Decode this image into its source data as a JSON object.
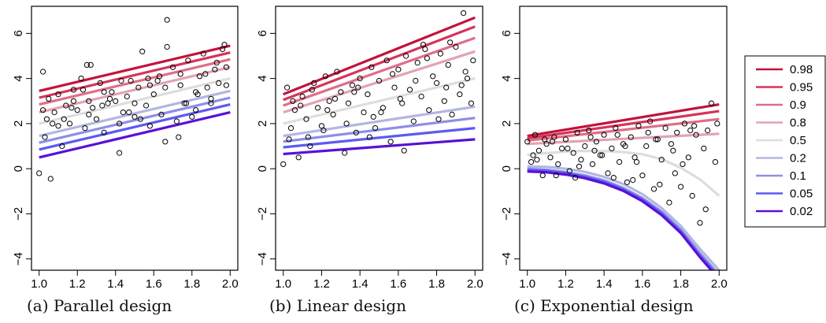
{
  "captions": [
    "(a)  Parallel design",
    "(b)  Linear design",
    "(c)  Exponential design"
  ],
  "colors": {
    "0.98": "#c4123a",
    "0.95": "#d6335a",
    "0.9": "#e06d87",
    "0.8": "#e3a3b1",
    "0.5": "#dddddd",
    "0.2": "#b3b6e1",
    "0.1": "#8c8fe6",
    "0.05": "#5d5af0",
    "0.02": "#5a10d8"
  },
  "legend": {
    "entries": [
      "0.98",
      "0.95",
      "0.9",
      "0.8",
      "0.5",
      "0.2",
      "0.1",
      "0.05",
      "0.02"
    ],
    "placement": "right"
  },
  "chart_data": [
    {
      "type": "scatter",
      "title": "",
      "xlabel": "",
      "ylabel": "",
      "xlim": [
        0.96,
        2.04
      ],
      "ylim": [
        -4.5,
        7.2
      ],
      "xticks": [
        "1.0",
        "1.2",
        "1.4",
        "1.6",
        "1.8",
        "2.0"
      ],
      "yticks": [
        "−4",
        "−2",
        "0",
        "2",
        "4",
        "6"
      ],
      "quantile_lines": [
        {
          "level": "0.98",
          "x": [
            1.0,
            2.0
          ],
          "y": [
            3.45,
            5.45
          ]
        },
        {
          "level": "0.95",
          "x": [
            1.0,
            2.0
          ],
          "y": [
            3.15,
            5.15
          ]
        },
        {
          "level": "0.9",
          "x": [
            1.0,
            2.0
          ],
          "y": [
            2.85,
            4.85
          ]
        },
        {
          "level": "0.8",
          "x": [
            1.0,
            2.0
          ],
          "y": [
            2.5,
            4.5
          ]
        },
        {
          "level": "0.5",
          "x": [
            1.0,
            2.0
          ],
          "y": [
            2.0,
            4.0
          ]
        },
        {
          "level": "0.2",
          "x": [
            1.0,
            2.0
          ],
          "y": [
            1.45,
            3.45
          ]
        },
        {
          "level": "0.1",
          "x": [
            1.0,
            2.0
          ],
          "y": [
            1.15,
            3.15
          ]
        },
        {
          "level": "0.05",
          "x": [
            1.0,
            2.0
          ],
          "y": [
            0.85,
            2.85
          ]
        },
        {
          "level": "0.02",
          "x": [
            1.0,
            2.0
          ],
          "y": [
            0.5,
            2.5
          ]
        }
      ],
      "points": {
        "x": [
          1.0,
          1.02,
          1.04,
          1.05,
          1.06,
          1.08,
          1.1,
          1.12,
          1.14,
          1.16,
          1.18,
          1.2,
          1.22,
          1.24,
          1.25,
          1.26,
          1.28,
          1.3,
          1.32,
          1.34,
          1.36,
          1.38,
          1.4,
          1.42,
          1.44,
          1.46,
          1.48,
          1.5,
          1.52,
          1.54,
          1.56,
          1.58,
          1.6,
          1.62,
          1.64,
          1.66,
          1.67,
          1.7,
          1.72,
          1.74,
          1.76,
          1.78,
          1.8,
          1.82,
          1.84,
          1.86,
          1.88,
          1.9,
          1.92,
          1.94,
          1.96,
          1.98,
          1.02,
          1.1,
          1.18,
          1.26,
          1.34,
          1.42,
          1.5,
          1.58,
          1.66,
          1.74,
          1.82,
          1.9,
          1.98,
          1.03,
          1.13,
          1.23,
          1.33,
          1.43,
          1.53,
          1.63,
          1.73,
          1.83,
          1.93,
          1.07,
          1.17,
          1.27,
          1.37,
          1.47,
          1.57,
          1.67,
          1.77,
          1.87,
          1.97
        ],
        "y": [
          -0.2,
          4.3,
          2.2,
          3.1,
          -0.45,
          2.5,
          3.3,
          1.0,
          2.8,
          2.0,
          3.5,
          2.6,
          4.0,
          1.8,
          4.6,
          3.0,
          2.7,
          2.2,
          3.8,
          1.6,
          2.9,
          3.4,
          3.0,
          0.7,
          2.5,
          3.2,
          3.9,
          2.3,
          3.6,
          5.2,
          2.8,
          1.9,
          3.3,
          3.9,
          2.4,
          3.6,
          6.6,
          4.5,
          2.1,
          3.7,
          2.9,
          4.8,
          2.3,
          3.4,
          4.1,
          5.1,
          3.6,
          2.9,
          4.4,
          3.8,
          5.3,
          3.7,
          2.6,
          1.9,
          3.0,
          2.4,
          3.4,
          2.0,
          2.9,
          3.7,
          1.2,
          4.2,
          2.6,
          3.1,
          4.5,
          1.4,
          2.2,
          3.5,
          2.8,
          3.9,
          2.2,
          4.1,
          1.4,
          3.3,
          4.7,
          2.0,
          2.7,
          4.6,
          3.1,
          2.5,
          4.0,
          5.4,
          2.9,
          4.2,
          5.5
        ]
      }
    },
    {
      "type": "scatter",
      "title": "",
      "xlabel": "",
      "ylabel": "",
      "xlim": [
        0.96,
        2.04
      ],
      "ylim": [
        -4.5,
        7.2
      ],
      "xticks": [
        "1.0",
        "1.2",
        "1.4",
        "1.6",
        "1.8",
        "2.0"
      ],
      "yticks": [
        "−4",
        "−2",
        "0",
        "2",
        "4",
        "6"
      ],
      "quantile_lines": [
        {
          "level": "0.98",
          "x": [
            1.0,
            2.0
          ],
          "y": [
            3.3,
            6.7
          ]
        },
        {
          "level": "0.95",
          "x": [
            1.0,
            2.0
          ],
          "y": [
            3.05,
            6.3
          ]
        },
        {
          "level": "0.9",
          "x": [
            1.0,
            2.0
          ],
          "y": [
            2.8,
            5.8
          ]
        },
        {
          "level": "0.8",
          "x": [
            1.0,
            2.0
          ],
          "y": [
            2.5,
            5.2
          ]
        },
        {
          "level": "0.5",
          "x": [
            1.0,
            2.0
          ],
          "y": [
            2.0,
            4.0
          ]
        },
        {
          "level": "0.2",
          "x": [
            1.0,
            2.0
          ],
          "y": [
            1.45,
            2.75
          ]
        },
        {
          "level": "0.1",
          "x": [
            1.0,
            2.0
          ],
          "y": [
            1.2,
            2.25
          ]
        },
        {
          "level": "0.05",
          "x": [
            1.0,
            2.0
          ],
          "y": [
            0.95,
            1.8
          ]
        },
        {
          "level": "0.02",
          "x": [
            1.0,
            2.0
          ],
          "y": [
            0.65,
            1.3
          ]
        }
      ],
      "points": {
        "x": [
          1.0,
          1.02,
          1.04,
          1.06,
          1.08,
          1.1,
          1.12,
          1.14,
          1.16,
          1.18,
          1.2,
          1.22,
          1.24,
          1.26,
          1.28,
          1.3,
          1.32,
          1.34,
          1.36,
          1.38,
          1.4,
          1.42,
          1.44,
          1.46,
          1.48,
          1.5,
          1.52,
          1.54,
          1.56,
          1.58,
          1.6,
          1.62,
          1.64,
          1.66,
          1.68,
          1.7,
          1.72,
          1.74,
          1.76,
          1.78,
          1.8,
          1.82,
          1.84,
          1.86,
          1.88,
          1.9,
          1.92,
          1.94,
          1.96,
          1.98,
          1.03,
          1.09,
          1.15,
          1.21,
          1.27,
          1.33,
          1.39,
          1.45,
          1.51,
          1.57,
          1.63,
          1.69,
          1.75,
          1.81,
          1.87,
          1.93,
          1.99,
          1.05,
          1.13,
          1.23,
          1.37,
          1.47,
          1.61,
          1.73,
          1.85,
          1.95
        ],
        "y": [
          0.2,
          3.6,
          1.8,
          2.6,
          0.5,
          3.2,
          2.2,
          1.0,
          3.8,
          2.7,
          1.9,
          4.1,
          3.0,
          2.4,
          4.3,
          3.4,
          0.7,
          2.9,
          3.7,
          1.6,
          4.0,
          2.5,
          3.3,
          4.5,
          1.8,
          3.9,
          2.7,
          4.8,
          1.2,
          3.6,
          4.4,
          2.9,
          5.0,
          3.5,
          2.1,
          4.7,
          3.2,
          5.3,
          2.6,
          4.1,
          3.8,
          5.1,
          3.0,
          4.6,
          2.4,
          5.4,
          3.3,
          6.9,
          4.0,
          2.9,
          1.3,
          2.8,
          3.5,
          1.7,
          3.1,
          2.0,
          3.6,
          1.4,
          2.5,
          4.2,
          0.8,
          3.9,
          4.9,
          2.2,
          5.6,
          3.7,
          4.8,
          3.0,
          1.4,
          2.6,
          3.4,
          2.3,
          3.1,
          5.5,
          3.6,
          4.3
        ]
      }
    },
    {
      "type": "scatter",
      "title": "",
      "xlabel": "",
      "ylabel": "",
      "xlim": [
        0.96,
        2.04
      ],
      "ylim": [
        -4.5,
        7.2
      ],
      "xticks": [
        "1.0",
        "1.2",
        "1.4",
        "1.6",
        "1.8",
        "2.0"
      ],
      "yticks": [
        "−4",
        "−2",
        "0",
        "2",
        "4",
        "6"
      ],
      "quantile_lines": [
        {
          "level": "0.98",
          "x": [
            1.0,
            2.0
          ],
          "y": [
            1.45,
            2.85
          ]
        },
        {
          "level": "0.95",
          "x": [
            1.0,
            2.0
          ],
          "y": [
            1.35,
            2.55
          ]
        },
        {
          "level": "0.9",
          "x": [
            1.0,
            2.0
          ],
          "y": [
            1.25,
            2.2
          ]
        },
        {
          "level": "0.8",
          "x": [
            1.0,
            2.0
          ],
          "y": [
            1.1,
            1.55
          ]
        },
        {
          "level": "0.5",
          "x": [
            1.0,
            1.1,
            1.2,
            1.3,
            1.4,
            1.5,
            1.6,
            1.7,
            1.8,
            1.9,
            2.0
          ],
          "y": [
            0.62,
            0.69,
            0.76,
            0.79,
            0.78,
            0.74,
            0.64,
            0.43,
            0.04,
            -0.47,
            -1.2
          ]
        },
        {
          "level": "0.2",
          "x": [
            1.0,
            1.1,
            1.2,
            1.3,
            1.4,
            1.5,
            1.6,
            1.7,
            1.8,
            1.9,
            2.0
          ],
          "y": [
            0.1,
            0.08,
            0.0,
            -0.14,
            -0.36,
            -0.68,
            -1.13,
            -1.74,
            -2.54,
            -3.56,
            -4.5
          ]
        },
        {
          "level": "0.1",
          "x": [
            1.0,
            1.1,
            1.2,
            1.3,
            1.4,
            1.5,
            1.6,
            1.7,
            1.8,
            1.9,
            2.0
          ],
          "y": [
            0.0,
            -0.05,
            -0.15,
            -0.3,
            -0.52,
            -0.85,
            -1.3,
            -1.9,
            -2.7,
            -3.75,
            -4.7
          ]
        },
        {
          "level": "0.05",
          "x": [
            1.0,
            1.1,
            1.2,
            1.3,
            1.4,
            1.5,
            1.6,
            1.7,
            1.8,
            1.9,
            2.0
          ],
          "y": [
            -0.06,
            -0.1,
            -0.2,
            -0.36,
            -0.58,
            -0.92,
            -1.37,
            -1.98,
            -2.78,
            -3.85,
            -4.8
          ]
        },
        {
          "level": "0.02",
          "x": [
            1.0,
            1.1,
            1.2,
            1.3,
            1.4,
            1.5,
            1.6,
            1.7,
            1.8,
            1.9,
            2.0
          ],
          "y": [
            -0.12,
            -0.16,
            -0.26,
            -0.42,
            -0.65,
            -0.98,
            -1.44,
            -2.05,
            -2.85,
            -3.92,
            -4.9
          ]
        }
      ],
      "points": {
        "x": [
          1.0,
          1.02,
          1.04,
          1.06,
          1.08,
          1.1,
          1.12,
          1.14,
          1.16,
          1.18,
          1.2,
          1.22,
          1.24,
          1.26,
          1.28,
          1.3,
          1.32,
          1.34,
          1.36,
          1.38,
          1.4,
          1.42,
          1.44,
          1.46,
          1.48,
          1.5,
          1.52,
          1.54,
          1.56,
          1.58,
          1.6,
          1.62,
          1.64,
          1.66,
          1.68,
          1.7,
          1.72,
          1.74,
          1.76,
          1.78,
          1.8,
          1.82,
          1.84,
          1.86,
          1.88,
          1.9,
          1.92,
          1.94,
          1.96,
          1.98,
          1.03,
          1.09,
          1.15,
          1.21,
          1.27,
          1.33,
          1.39,
          1.45,
          1.51,
          1.57,
          1.63,
          1.69,
          1.75,
          1.81,
          1.87,
          1.93,
          1.99,
          1.05,
          1.13,
          1.25,
          1.35,
          1.47,
          1.55,
          1.67,
          1.77,
          1.85
        ],
        "y": [
          1.2,
          0.3,
          1.5,
          0.8,
          -0.3,
          1.1,
          0.5,
          1.4,
          0.2,
          0.9,
          1.3,
          -0.1,
          0.7,
          1.6,
          0.4,
          1.0,
          1.7,
          0.2,
          1.2,
          0.6,
          1.5,
          -0.2,
          0.9,
          1.8,
          0.3,
          1.1,
          -0.6,
          1.4,
          0.5,
          1.9,
          -0.3,
          1.0,
          2.1,
          -0.9,
          1.3,
          0.4,
          1.8,
          -1.5,
          0.8,
          1.6,
          -0.8,
          2.0,
          0.5,
          -1.2,
          1.5,
          -2.4,
          0.9,
          1.7,
          2.9,
          0.3,
          0.6,
          1.3,
          -0.3,
          0.9,
          0.1,
          1.4,
          0.6,
          -0.4,
          1.0,
          0.3,
          1.6,
          -0.7,
          1.1,
          0.2,
          1.9,
          -1.8,
          2.0,
          0.4,
          1.2,
          -0.4,
          0.8,
          1.5,
          -0.5,
          1.3,
          -0.2,
          1.7
        ]
      }
    }
  ]
}
